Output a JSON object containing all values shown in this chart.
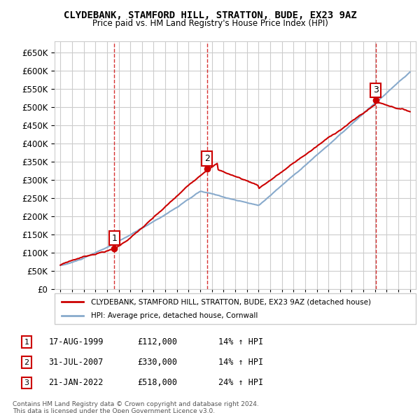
{
  "title": "CLYDEBANK, STAMFORD HILL, STRATTON, BUDE, EX23 9AZ",
  "subtitle": "Price paid vs. HM Land Registry's House Price Index (HPI)",
  "legend_label1": "CLYDEBANK, STAMFORD HILL, STRATTON, BUDE, EX23 9AZ (detached house)",
  "legend_label2": "HPI: Average price, detached house, Cornwall",
  "transactions": [
    {
      "num": 1,
      "date": "17-AUG-1999",
      "price": "£112,000",
      "hpi": "14% ↑ HPI",
      "year": 1999.62
    },
    {
      "num": 2,
      "date": "31-JUL-2007",
      "price": "£330,000",
      "hpi": "14% ↑ HPI",
      "year": 2007.58
    },
    {
      "num": 3,
      "date": "21-JAN-2022",
      "price": "£518,000",
      "hpi": "24% ↑ HPI",
      "year": 2022.05
    }
  ],
  "footnote1": "Contains HM Land Registry data © Crown copyright and database right 2024.",
  "footnote2": "This data is licensed under the Open Government Licence v3.0.",
  "color_red": "#cc0000",
  "color_blue": "#aaccee",
  "color_blue_hpi": "#88aacc",
  "ylim_min": 0,
  "ylim_max": 680000,
  "xlim_min": 1994.5,
  "xlim_max": 2025.5,
  "background_color": "#ffffff",
  "grid_color": "#cccccc"
}
